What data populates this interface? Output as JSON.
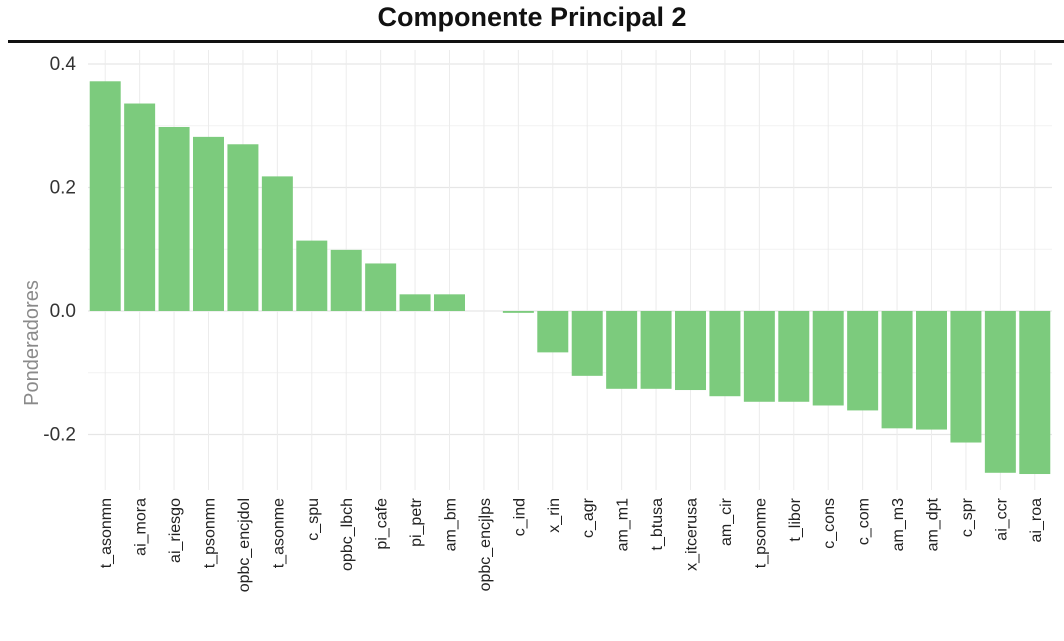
{
  "chart_data": {
    "type": "bar",
    "title": "Componente Principal 2",
    "xlabel": "",
    "ylabel": "Ponderadores",
    "ylim": [
      -0.29,
      0.41
    ],
    "yticks": [
      "0.4",
      "0.2",
      "0.0",
      "-0.2"
    ],
    "ytick_values": [
      0.4,
      0.2,
      0.0,
      -0.2
    ],
    "grid": true,
    "legend": "none",
    "bar_color": "#7ccb7d",
    "categories": [
      "t_asonmn",
      "ai_mora",
      "ai_riesgo",
      "t_psonmn",
      "opbc_encjdol",
      "t_asonme",
      "c_spu",
      "opbc_lbch",
      "pi_cafe",
      "pi_petr",
      "am_bm",
      "opbc_encjlps",
      "c_ind",
      "x_rin",
      "c_agr",
      "am_m1",
      "t_btusa",
      "x_itcerusa",
      "am_cir",
      "t_psonme",
      "t_libor",
      "c_cons",
      "c_com",
      "am_m3",
      "am_dpt",
      "c_spr",
      "ai_ccr",
      "ai_roa"
    ],
    "values": [
      0.372,
      0.336,
      0.298,
      0.282,
      0.27,
      0.218,
      0.114,
      0.099,
      0.077,
      0.027,
      0.027,
      0.0,
      -0.003,
      -0.067,
      -0.105,
      -0.126,
      -0.126,
      -0.128,
      -0.138,
      -0.147,
      -0.147,
      -0.153,
      -0.161,
      -0.19,
      -0.192,
      -0.213,
      -0.262,
      -0.264
    ]
  }
}
